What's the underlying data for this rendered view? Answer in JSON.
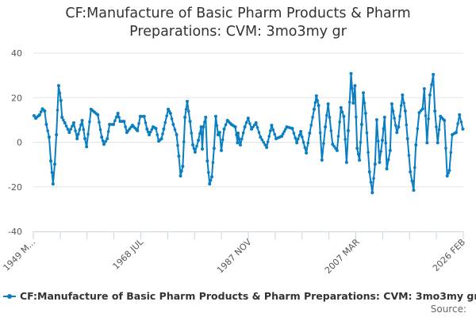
{
  "chart_data": {
    "type": "line",
    "title": "CF:Manufacture of Basic Pharm Products & Pharm Preparations: CVM: 3mo3my gr",
    "title_lines": [
      "CF:Manufacture of Basic Pharm Products & Pharm",
      "Preparations: CVM: 3mo3my gr"
    ],
    "xlabel": "",
    "ylabel": "",
    "ylim": [
      -40,
      40
    ],
    "xlim": [
      1949.17,
      2026.08
    ],
    "yticks": [
      40,
      20,
      0,
      -20,
      -40
    ],
    "xtick_labels": [
      {
        "label": "1949 M...",
        "year": 1949.17
      },
      {
        "label": "1968 JUL",
        "year": 1968.5
      },
      {
        "label": "1987 NOV",
        "year": 1987.83
      },
      {
        "label": "2007 MAR",
        "year": 2007.17
      },
      {
        "label": "2026 FEB",
        "year": 2026.08
      }
    ],
    "grid": true,
    "legend_position": "bottom",
    "color": "#0a7ec2",
    "series": [
      {
        "name": "CF:Manufacture of Basic Pharm Products & Pharm Preparations: CVM: 3mo3my gr",
        "points": [
          [
            1949.3,
            11.9
          ],
          [
            1949.6,
            10.8
          ],
          [
            1950.3,
            12.3
          ],
          [
            1950.8,
            15
          ],
          [
            1951.2,
            14
          ],
          [
            1951.5,
            8
          ],
          [
            1952.0,
            2.3
          ],
          [
            1952.3,
            -8.4
          ],
          [
            1952.7,
            -18.7
          ],
          [
            1953.0,
            -9.8
          ],
          [
            1953.3,
            3.4
          ],
          [
            1953.7,
            25.4
          ],
          [
            1954.1,
            18.7
          ],
          [
            1954.3,
            11.2
          ],
          [
            1954.8,
            8.7
          ],
          [
            1955.6,
            4.4
          ],
          [
            1956.4,
            8.7
          ],
          [
            1957.0,
            1.6
          ],
          [
            1957.9,
            9.8
          ],
          [
            1958.4,
            1.6
          ],
          [
            1958.7,
            -2
          ],
          [
            1959.5,
            14.8
          ],
          [
            1960.7,
            12.3
          ],
          [
            1961.4,
            2.3
          ],
          [
            1961.8,
            -0.9
          ],
          [
            1962.4,
            1.6
          ],
          [
            1962.8,
            8
          ],
          [
            1963.5,
            8
          ],
          [
            1964.3,
            13
          ],
          [
            1964.7,
            9.4
          ],
          [
            1965.4,
            9.4
          ],
          [
            1965.9,
            4.4
          ],
          [
            1966.9,
            7.6
          ],
          [
            1967.8,
            5.2
          ],
          [
            1968.3,
            11.6
          ],
          [
            1969.0,
            11.6
          ],
          [
            1969.5,
            5.9
          ],
          [
            1969.9,
            3.4
          ],
          [
            1970.6,
            6.9
          ],
          [
            1971.1,
            6.2
          ],
          [
            1971.6,
            0.5
          ],
          [
            1972.1,
            1.6
          ],
          [
            1972.5,
            5.9
          ],
          [
            1973.3,
            14.8
          ],
          [
            1973.7,
            13
          ],
          [
            1974.2,
            8
          ],
          [
            1974.8,
            3.4
          ],
          [
            1975.2,
            -6.2
          ],
          [
            1975.5,
            -15.1
          ],
          [
            1975.9,
            -10.8
          ],
          [
            1976.3,
            11.2
          ],
          [
            1976.7,
            18.3
          ],
          [
            1977.2,
            9.4
          ],
          [
            1977.7,
            -1.2
          ],
          [
            1978.1,
            -4.4
          ],
          [
            1978.7,
            0.9
          ],
          [
            1979.2,
            6.9
          ],
          [
            1979.4,
            -3
          ],
          [
            1979.6,
            6.9
          ],
          [
            1980.0,
            11.2
          ],
          [
            1980.3,
            -8.4
          ],
          [
            1980.7,
            -18.7
          ],
          [
            1981.1,
            -15.5
          ],
          [
            1981.5,
            -2.7
          ],
          [
            1981.8,
            11.6
          ],
          [
            1982.2,
            3.4
          ],
          [
            1982.5,
            4.4
          ],
          [
            1982.8,
            -3.7
          ],
          [
            1983.3,
            5.9
          ],
          [
            1983.9,
            9.8
          ],
          [
            1984.6,
            8
          ],
          [
            1985.3,
            6.9
          ],
          [
            1985.7,
            -0.2
          ],
          [
            1985.8,
            4.1
          ],
          [
            1986.2,
            -1.2
          ],
          [
            1987.0,
            6.9
          ],
          [
            1987.6,
            10.8
          ],
          [
            1988.2,
            5.9
          ],
          [
            1989.0,
            8.7
          ],
          [
            1989.8,
            2.3
          ],
          [
            1990.9,
            -2.3
          ],
          [
            1991.8,
            7.6
          ],
          [
            1992.6,
            1.6
          ],
          [
            1993.6,
            2.7
          ],
          [
            1994.5,
            6.9
          ],
          [
            1995.5,
            6.2
          ],
          [
            1996.3,
            -0.2
          ],
          [
            1997.0,
            4.8
          ],
          [
            1998.0,
            -4.8
          ],
          [
            1998.6,
            4.1
          ],
          [
            1999.4,
            14.8
          ],
          [
            1999.8,
            20.8
          ],
          [
            2000.2,
            16.5
          ],
          [
            2000.8,
            -8
          ],
          [
            2001.4,
            6.9
          ],
          [
            2001.9,
            17.2
          ],
          [
            2002.7,
            -0.9
          ],
          [
            2003.5,
            -3.7
          ],
          [
            2004.2,
            15.5
          ],
          [
            2004.7,
            11.6
          ],
          [
            2005.2,
            -9
          ],
          [
            2005.5,
            5.2
          ],
          [
            2006.0,
            30.8
          ],
          [
            2006.4,
            17.6
          ],
          [
            2006.7,
            25.4
          ],
          [
            2007.1,
            -2.7
          ],
          [
            2007.5,
            -8
          ],
          [
            2007.9,
            8
          ],
          [
            2008.2,
            22.2
          ],
          [
            2008.6,
            13
          ],
          [
            2009.3,
            -13.3
          ],
          [
            2009.8,
            -22.6
          ],
          [
            2010.3,
            -9.8
          ],
          [
            2010.6,
            10.1
          ],
          [
            2011.1,
            -9
          ],
          [
            2011.6,
            0.9
          ],
          [
            2012.0,
            11.2
          ],
          [
            2012.4,
            -11.9
          ],
          [
            2013.0,
            -3.7
          ],
          [
            2013.3,
            17.2
          ],
          [
            2014.2,
            4.4
          ],
          [
            2014.5,
            6.9
          ],
          [
            2015.2,
            21.2
          ],
          [
            2015.7,
            14
          ],
          [
            2016.1,
            1.6
          ],
          [
            2016.6,
            -13.3
          ],
          [
            2017.2,
            -21.5
          ],
          [
            2017.6,
            -1.2
          ],
          [
            2018.2,
            13.3
          ],
          [
            2018.8,
            15
          ],
          [
            2019.1,
            24
          ],
          [
            2019.6,
            -0.2
          ],
          [
            2020.1,
            21.2
          ],
          [
            2020.7,
            30.4
          ],
          [
            2021.0,
            14
          ],
          [
            2021.5,
            -0.2
          ],
          [
            2022.0,
            11.6
          ],
          [
            2022.7,
            9.8
          ],
          [
            2023.2,
            -15.1
          ],
          [
            2023.6,
            -12.6
          ],
          [
            2024.1,
            3.4
          ],
          [
            2024.8,
            4.4
          ],
          [
            2025.4,
            12.3
          ],
          [
            2026.0,
            5.9
          ]
        ]
      }
    ],
    "source_label": "Source:"
  }
}
